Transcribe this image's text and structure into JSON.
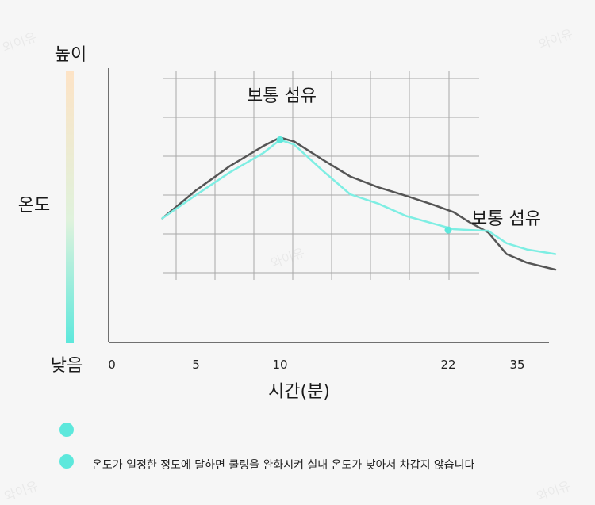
{
  "chart_data": {
    "type": "line",
    "title": "",
    "xlabel": "시간(분)",
    "ylabel": "온도",
    "y_high_label": "높이",
    "y_low_label": "낮음",
    "x_tick_labels": [
      {
        "label": "0",
        "x": 0
      },
      {
        "label": "5",
        "x": 5
      },
      {
        "label": "10",
        "x": 10
      },
      {
        "label": "22",
        "x": 22
      },
      {
        "label": "35",
        "x": 35
      }
    ],
    "grid": true,
    "series": [
      {
        "name": "",
        "color": "#555555",
        "x": [
          3.0,
          5.0,
          7.0,
          9.0,
          10.0,
          11.0,
          13.0,
          15.0,
          17.0,
          19.0,
          21.0,
          23.0,
          26.0,
          29.5,
          33.0,
          36.0,
          39.0
        ],
        "y": [
          0.2,
          0.56,
          0.87,
          1.13,
          1.24,
          1.19,
          0.96,
          0.74,
          0.6,
          0.49,
          0.37,
          0.28,
          0.15,
          0.02,
          -0.26,
          -0.37,
          -0.46
        ]
      },
      {
        "name": "",
        "color": "#7eeee3",
        "x": [
          3.0,
          5.0,
          7.0,
          9.0,
          10.0,
          11.0,
          13.0,
          15.0,
          17.0,
          19.0,
          21.0,
          23.0,
          26.0,
          29.5,
          33.0,
          36.0,
          39.0
        ],
        "y": [
          0.2,
          0.5,
          0.79,
          1.04,
          1.21,
          1.15,
          0.82,
          0.51,
          0.39,
          0.23,
          0.13,
          0.06,
          0.05,
          0.04,
          -0.12,
          -0.2,
          -0.26
        ]
      }
    ],
    "annotations": [
      {
        "text": "보통 섬유",
        "x": 10.0,
        "y": 1.21
      },
      {
        "text": "보통 섬유",
        "x": 22.0,
        "y": 0.05
      }
    ]
  },
  "legend": [
    {
      "text": "",
      "color": "#5de8dc"
    },
    {
      "text": "온도가 일정한 정도에 달하면 쿨링을 완화시켜 실내 온도가 낮아서 차갑지 않습니다",
      "color": "#5de8dc"
    }
  ],
  "watermark": "와이유",
  "colors": {
    "gradient_top": "#fde3c6",
    "gradient_bottom": "#5de8dc",
    "grid": "#a8a8a8",
    "axis": "#444444"
  }
}
